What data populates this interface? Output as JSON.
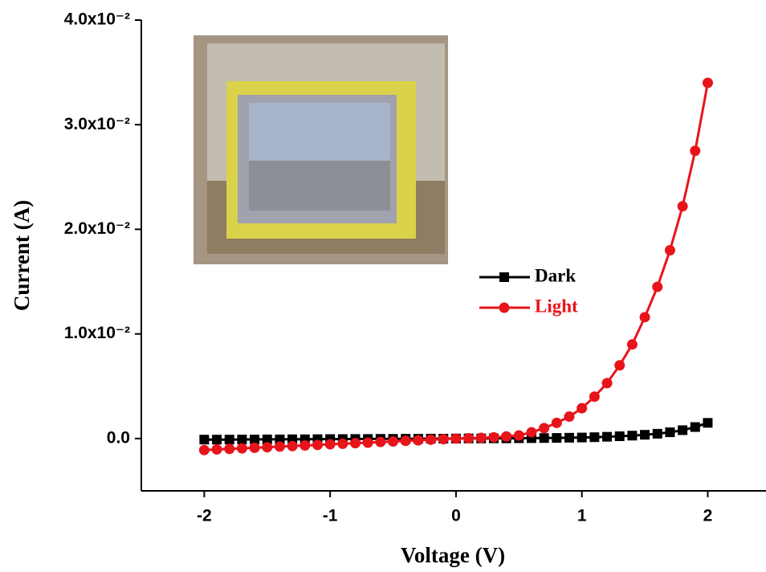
{
  "chart_data": {
    "type": "line",
    "xlabel": "Voltage (V)",
    "ylabel": "Current (A)",
    "xlim": [
      -2.5,
      2.45
    ],
    "xticks": [
      -2,
      -1,
      0,
      1,
      2
    ],
    "ylim": [
      -0.005,
      0.04
    ],
    "yticks": [
      {
        "value": 0,
        "label": "0.0"
      },
      {
        "value": 0.01,
        "label": "1.0x10⁻²"
      },
      {
        "value": 0.02,
        "label": "2.0x10⁻²"
      },
      {
        "value": 0.03,
        "label": "3.0x10⁻²"
      },
      {
        "value": 0.04,
        "label": "4.0x10⁻²"
      }
    ],
    "x": [
      -2,
      -1.9,
      -1.8,
      -1.7,
      -1.6,
      -1.5,
      -1.4,
      -1.3,
      -1.2,
      -1.1,
      -1,
      -0.9,
      -0.8,
      -0.7,
      -0.6,
      -0.5,
      -0.4,
      -0.3,
      -0.2,
      -0.1,
      0,
      0.1,
      0.2,
      0.3,
      0.4,
      0.5,
      0.6,
      0.7,
      0.8,
      0.9,
      1,
      1.1,
      1.2,
      1.3,
      1.4,
      1.5,
      1.6,
      1.7,
      1.8,
      1.9,
      2
    ],
    "series": [
      {
        "name": "Dark",
        "color": "#000000",
        "marker": "square",
        "values": [
          -0.0001,
          -0.0001,
          -0.0001,
          -9e-05,
          -9e-05,
          -8e-05,
          -8e-05,
          -7e-05,
          -7e-05,
          -6e-05,
          -5e-05,
          -5e-05,
          -4e-05,
          -4e-05,
          -3e-05,
          -3e-05,
          -2e-05,
          -2e-05,
          -1e-05,
          -1e-05,
          0,
          1e-05,
          1e-05,
          2e-05,
          2e-05,
          3e-05,
          4e-05,
          5e-05,
          6e-05,
          8e-05,
          0.0001,
          0.00013,
          0.00017,
          0.00022,
          0.00028,
          0.00036,
          0.00046,
          0.0006,
          0.0008,
          0.0011,
          0.0015
        ]
      },
      {
        "name": "Light",
        "color": "#e8141b",
        "marker": "circle",
        "values": [
          -0.0011,
          -0.00104,
          -0.00099,
          -0.00094,
          -0.00088,
          -0.00083,
          -0.00077,
          -0.00072,
          -0.00066,
          -0.00061,
          -0.00055,
          -0.0005,
          -0.00044,
          -0.00039,
          -0.00033,
          -0.00028,
          -0.00022,
          -0.00017,
          -0.00011,
          -6e-05,
          0,
          3e-05,
          7e-05,
          0.00012,
          0.0002,
          0.0003,
          0.0006,
          0.001,
          0.0015,
          0.0021,
          0.0029,
          0.004,
          0.0053,
          0.007,
          0.009,
          0.0116,
          0.0145,
          0.018,
          0.0222,
          0.0275,
          0.034
        ]
      }
    ]
  }
}
